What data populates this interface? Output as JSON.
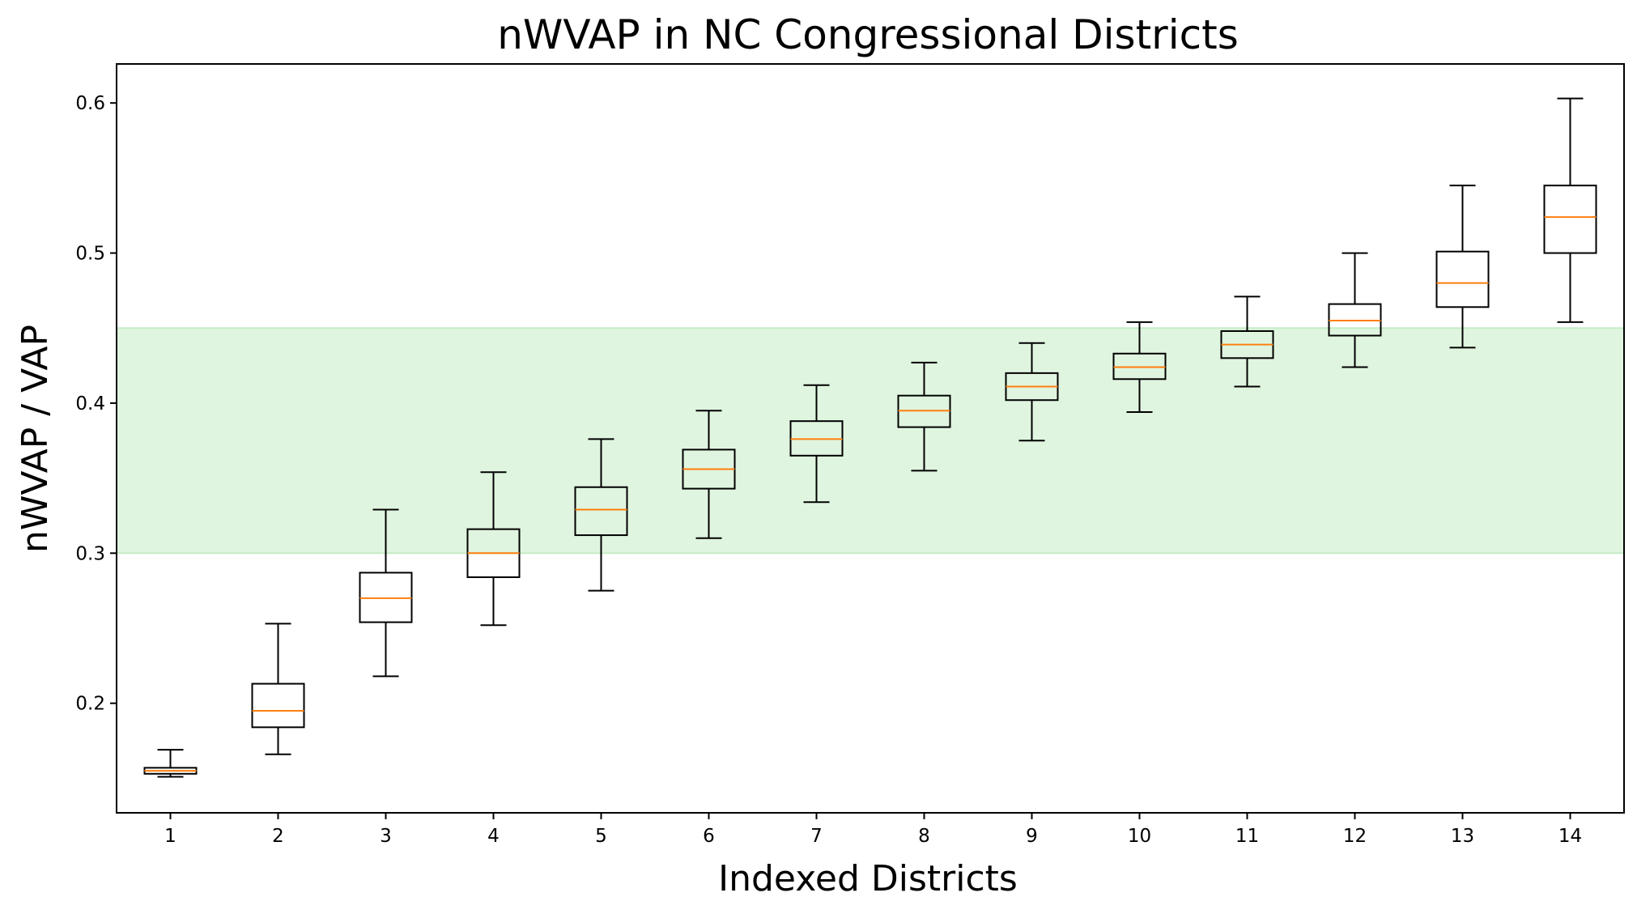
{
  "chart_data": {
    "type": "box",
    "title": "nWVAP in NC Congressional Districts",
    "xlabel": "Indexed Districts",
    "ylabel": "nWVAP / VAP",
    "ylim": [
      0.127,
      0.626
    ],
    "yticks": [
      0.2,
      0.3,
      0.4,
      0.5,
      0.6
    ],
    "yticklabels": [
      "0.2",
      "0.3",
      "0.4",
      "0.5",
      "0.6"
    ],
    "categories": [
      "1",
      "2",
      "3",
      "4",
      "5",
      "6",
      "7",
      "8",
      "9",
      "10",
      "11",
      "12",
      "13",
      "14"
    ],
    "band": {
      "low": 0.3,
      "high": 0.45,
      "color": "#dff5df",
      "edge_color": "#c6ecc6"
    },
    "colors": {
      "box": "#000000",
      "median": "#ff7f0e"
    },
    "grid": false,
    "legend": "none",
    "boxes": [
      {
        "district": "1",
        "whisker_low": 0.151,
        "q1": 0.153,
        "median": 0.155,
        "q3": 0.157,
        "whisker_high": 0.169
      },
      {
        "district": "2",
        "whisker_low": 0.166,
        "q1": 0.184,
        "median": 0.195,
        "q3": 0.213,
        "whisker_high": 0.253
      },
      {
        "district": "3",
        "whisker_low": 0.218,
        "q1": 0.254,
        "median": 0.27,
        "q3": 0.287,
        "whisker_high": 0.329
      },
      {
        "district": "4",
        "whisker_low": 0.252,
        "q1": 0.284,
        "median": 0.3,
        "q3": 0.316,
        "whisker_high": 0.354
      },
      {
        "district": "5",
        "whisker_low": 0.275,
        "q1": 0.312,
        "median": 0.329,
        "q3": 0.344,
        "whisker_high": 0.376
      },
      {
        "district": "6",
        "whisker_low": 0.31,
        "q1": 0.343,
        "median": 0.356,
        "q3": 0.369,
        "whisker_high": 0.395
      },
      {
        "district": "7",
        "whisker_low": 0.334,
        "q1": 0.365,
        "median": 0.376,
        "q3": 0.388,
        "whisker_high": 0.412
      },
      {
        "district": "8",
        "whisker_low": 0.355,
        "q1": 0.384,
        "median": 0.395,
        "q3": 0.405,
        "whisker_high": 0.427
      },
      {
        "district": "9",
        "whisker_low": 0.375,
        "q1": 0.402,
        "median": 0.411,
        "q3": 0.42,
        "whisker_high": 0.44
      },
      {
        "district": "10",
        "whisker_low": 0.394,
        "q1": 0.416,
        "median": 0.424,
        "q3": 0.433,
        "whisker_high": 0.454
      },
      {
        "district": "11",
        "whisker_low": 0.411,
        "q1": 0.43,
        "median": 0.439,
        "q3": 0.448,
        "whisker_high": 0.471
      },
      {
        "district": "12",
        "whisker_low": 0.424,
        "q1": 0.445,
        "median": 0.455,
        "q3": 0.466,
        "whisker_high": 0.5
      },
      {
        "district": "13",
        "whisker_low": 0.437,
        "q1": 0.464,
        "median": 0.48,
        "q3": 0.501,
        "whisker_high": 0.545
      },
      {
        "district": "14",
        "whisker_low": 0.454,
        "q1": 0.5,
        "median": 0.524,
        "q3": 0.545,
        "whisker_high": 0.603
      }
    ]
  }
}
